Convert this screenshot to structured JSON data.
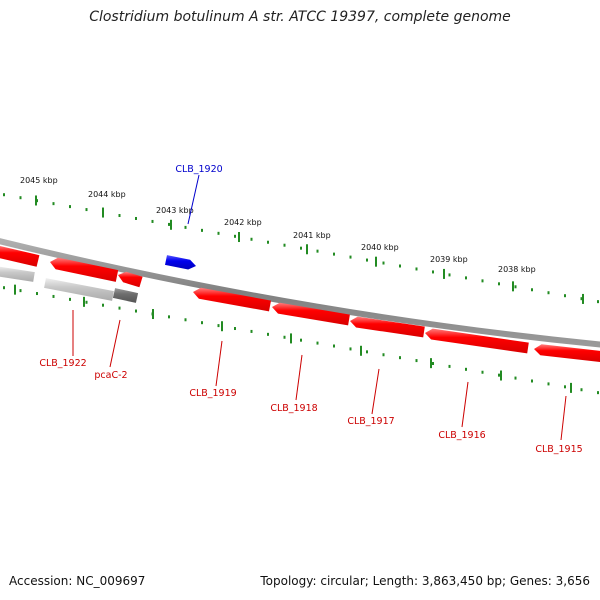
{
  "title": "Clostridium botulinum A str. ATCC 19397, complete genome",
  "footer": {
    "accession": "Accession: NC_009697",
    "topology": "Topology: circular; Length: 3,863,450 bp; Genes: 3,656"
  },
  "colors": {
    "background": "#ffffff",
    "backbone": "#8a8a8a",
    "tick": "#228b22",
    "gene_forward": "#0000ee",
    "gene_reverse": "#ee0000",
    "gene_other": "#c8c8c8",
    "gene_other_dark": "#6e6e6e",
    "label_red": "#cc0000",
    "label_blue": "#0000cc"
  },
  "scale_labels": [
    "2045 kbp",
    "2044 kbp",
    "2043 kbp",
    "2042 kbp",
    "2041 kbp",
    "2040 kbp",
    "2039 kbp",
    "2038 kbp"
  ],
  "genes": [
    {
      "label": "CLB_1920",
      "strand": "forward"
    },
    {
      "label": "CLB_1922",
      "strand": "reverse"
    },
    {
      "label": "pcaC-2",
      "strand": "reverse"
    },
    {
      "label": "CLB_1919",
      "strand": "reverse"
    },
    {
      "label": "CLB_1918",
      "strand": "reverse"
    },
    {
      "label": "CLB_1917",
      "strand": "reverse"
    },
    {
      "label": "CLB_1916",
      "strand": "reverse"
    },
    {
      "label": "CLB_1915",
      "strand": "reverse"
    }
  ]
}
